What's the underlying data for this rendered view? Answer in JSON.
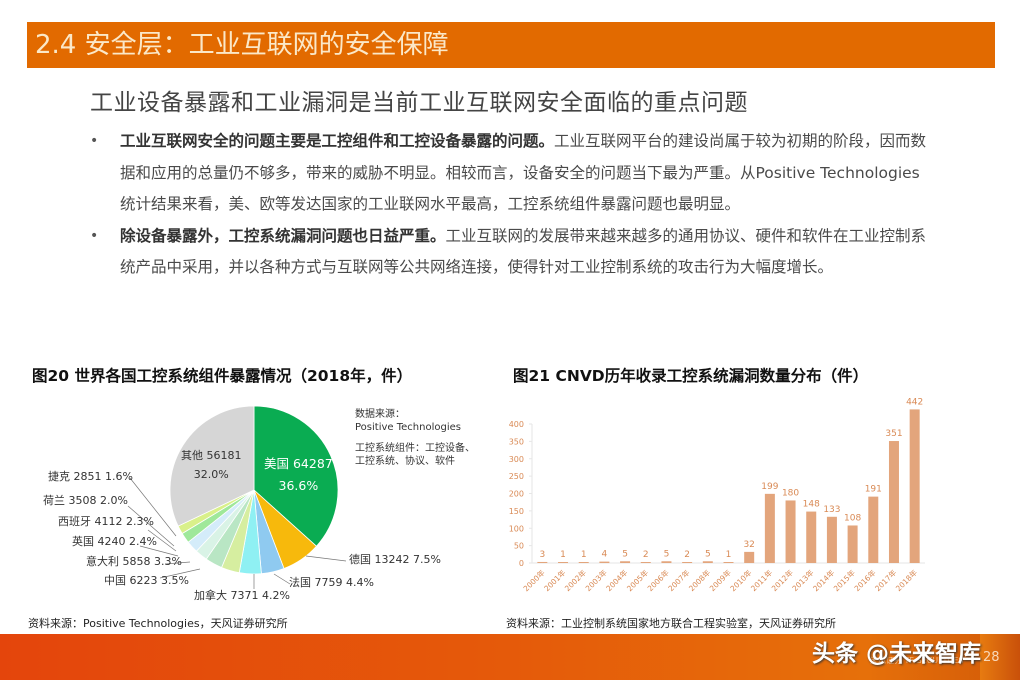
{
  "header": {
    "title": "2.4 安全层：工业互联网的安全保障",
    "subtitle": "工业设备暴露和工业漏洞是当前工业互联网安全面临的重点问题"
  },
  "bullets": [
    {
      "bold": "工业互联网安全的问题主要是工控组件和工控设备暴露的问题。",
      "text": "工业互联网平台的建设尚属于较为初期的阶段，因而数据和应用的总量仍不够多，带来的威胁不明显。相较而言，设备安全的问题当下最为严重。从Positive Technologies统计结果来看，美、欧等发达国家的工业联网水平最高，工控系统组件暴露问题也最明显。"
    },
    {
      "bold": "除设备暴露外，工控系统漏洞问题也日益严重。",
      "text": "工业互联网的发展带来越来越多的通用协议、硬件和软件在工业控制系统产品中采用，并以各种方式与互联网等公共网络连接，使得针对工业控制系统的攻击行为大幅度增长。"
    }
  ],
  "figures": {
    "fig20": {
      "title": "图20 世界各国工控系统组件暴露情况（2018年，件）",
      "note_line1": "数据来源：",
      "note_line2": "Positive Technologies",
      "note_line3": "工控系统组件：工控设备、",
      "note_line4": "工控系统、协议、软件",
      "source": "资料来源：Positive Technologies，天风证券研究所"
    },
    "fig21": {
      "title": "图21 CNVD历年收录工控系统漏洞数量分布（件）",
      "source": "资料来源：工业控制系统国家地方联合工程实验室，天风证券研究所"
    }
  },
  "footer": {
    "watermark": "头条 @未来智库",
    "brand": "天风证券 TF SECURITIES",
    "page_number": "28"
  },
  "colors": {
    "title_bar": "#e26a00",
    "title_text": "#fbe8c8",
    "bar_fill": "#e3a57c",
    "axis_text": "#d98a55",
    "footer_start": "#e4450c",
    "footer_end": "#e6700a"
  },
  "chart_data": [
    {
      "type": "pie",
      "title": "图20 世界各国工控系统组件暴露情况（2018年，件）",
      "categories": [
        "美国",
        "德国",
        "法国",
        "加拿大",
        "中国",
        "意大利",
        "英国",
        "西班牙",
        "荷兰",
        "捷克",
        "其他"
      ],
      "values": [
        64287,
        13242,
        7759,
        7371,
        6223,
        5858,
        4240,
        4112,
        3508,
        2851,
        56181
      ],
      "percentages": [
        36.6,
        7.5,
        4.4,
        4.2,
        3.5,
        3.3,
        2.4,
        2.3,
        2.0,
        1.6,
        32.0
      ],
      "colors": [
        "#0aac52",
        "#f7b90c",
        "#8fcaf0",
        "#8ff0f3",
        "#d6eea0",
        "#b9e6c4",
        "#d9f3e6",
        "#d4ecfa",
        "#9fe89a",
        "#d9f08a",
        "#d6d6d6"
      ],
      "labels": [
        "美国 64287",
        "德国 13242  7.5%",
        "法国 7759  4.4%",
        "加拿大 7371  4.2%",
        "中国 6223  3.5%",
        "意大利 5858  3.3%",
        "英国 4240  2.4%",
        "西班牙 4112  2.3%",
        "荷兰 3508  2.0%",
        "捷克 2851  1.6%",
        "其他 56181"
      ],
      "annotation": "数据来源：Positive Technologies；工控系统组件：工控设备、工控系统、协议、软件"
    },
    {
      "type": "bar",
      "title": "图21 CNVD历年收录工控系统漏洞数量分布（件）",
      "categories": [
        "2000年",
        "2001年",
        "2002年",
        "2003年",
        "2004年",
        "2005年",
        "2006年",
        "2007年",
        "2008年",
        "2009年",
        "2010年",
        "2011年",
        "2012年",
        "2013年",
        "2014年",
        "2015年",
        "2016年",
        "2017年",
        "2018年"
      ],
      "values": [
        3,
        1,
        1,
        4,
        5,
        2,
        5,
        2,
        5,
        1,
        32,
        199,
        180,
        148,
        133,
        108,
        191,
        351,
        442
      ],
      "xlabel": "",
      "ylabel": "",
      "ylim": [
        0,
        400
      ],
      "yticks": [
        0,
        50,
        100,
        150,
        200,
        250,
        300,
        350,
        400
      ],
      "grid": false,
      "data_labels": true
    }
  ]
}
